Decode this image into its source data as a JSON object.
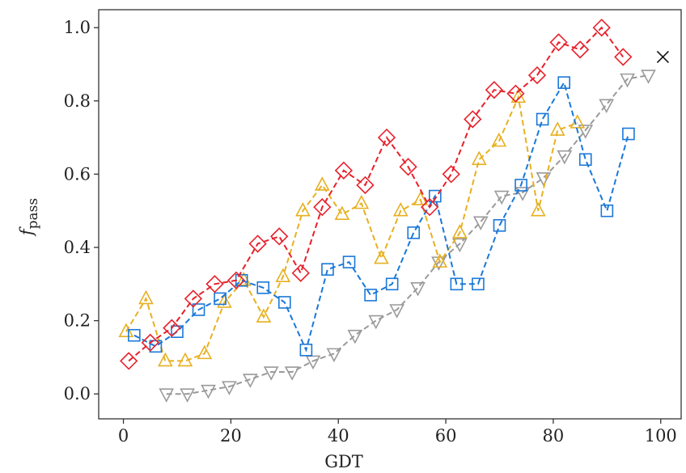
{
  "chart_data": {
    "type": "line",
    "xlabel": "GDT",
    "ylabel": {
      "symbol": "f",
      "subscript": "pass"
    },
    "xlim": [
      -4.6,
      103.8
    ],
    "ylim": [
      -0.068,
      1.049
    ],
    "xticks": [
      0,
      20,
      40,
      60,
      80,
      100
    ],
    "yticks": [
      {
        "value": 0,
        "label": "0.0"
      },
      {
        "value": 0.2,
        "label": "0.2"
      },
      {
        "value": 0.4,
        "label": "0.4"
      },
      {
        "value": 0.6,
        "label": "0.6"
      },
      {
        "value": 0.8,
        "label": "0.8"
      },
      {
        "value": 1,
        "label": "1.0"
      }
    ],
    "series": [
      {
        "color": "#9a9a9a",
        "marker": "triangle-down",
        "line": true,
        "x": [
          8,
          11.9,
          15.8,
          19.7,
          23.6,
          27.5,
          31.4,
          35.3,
          39.2,
          43.1,
          47,
          50.9,
          54.8,
          58.7,
          62.6,
          66.5,
          70.4,
          74.3,
          78.2,
          82.1,
          86,
          89.9,
          93.8,
          97.7
        ],
        "values": [
          0.0,
          0.0,
          0.01,
          0.02,
          0.04,
          0.06,
          0.06,
          0.09,
          0.11,
          0.16,
          0.2,
          0.23,
          0.29,
          0.36,
          0.41,
          0.47,
          0.54,
          0.55,
          0.59,
          0.65,
          0.72,
          0.79,
          0.86,
          0.87
        ]
      },
      {
        "color": "#e8b020",
        "marker": "triangle-up",
        "line": true,
        "x": [
          0.5,
          4.2,
          7.8,
          11.5,
          15.1,
          18.8,
          22.4,
          26.1,
          29.7,
          33.4,
          37,
          40.7,
          44.3,
          48,
          51.6,
          55.3,
          58.9,
          62.6,
          66.2,
          69.9,
          73.5,
          77.2,
          80.8,
          84.5
        ],
        "values": [
          0.17,
          0.26,
          0.09,
          0.09,
          0.11,
          0.25,
          0.31,
          0.21,
          0.32,
          0.5,
          0.57,
          0.49,
          0.52,
          0.37,
          0.5,
          0.53,
          0.36,
          0.44,
          0.64,
          0.69,
          0.81,
          0.5,
          0.72,
          0.74
        ]
      },
      {
        "color": "#1a78d8",
        "marker": "square",
        "line": true,
        "x": [
          2,
          6,
          10,
          14,
          18,
          22,
          26,
          30,
          34,
          38,
          42,
          46,
          50,
          54,
          58,
          62,
          66,
          70,
          74,
          78,
          82,
          86,
          90,
          94
        ],
        "values": [
          0.16,
          0.13,
          0.17,
          0.23,
          0.26,
          0.31,
          0.29,
          0.25,
          0.12,
          0.34,
          0.36,
          0.27,
          0.3,
          0.44,
          0.54,
          0.3,
          0.3,
          0.46,
          0.57,
          0.75,
          0.85,
          0.64,
          0.5,
          0.71
        ]
      },
      {
        "color": "#e8202a",
        "marker": "diamond",
        "line": true,
        "x": [
          1,
          5,
          9,
          13,
          17,
          21,
          25,
          29,
          33,
          37,
          41,
          45,
          49,
          53,
          57,
          61,
          65,
          69,
          73,
          77,
          81,
          85,
          89,
          93
        ],
        "values": [
          0.09,
          0.14,
          0.18,
          0.26,
          0.3,
          0.31,
          0.41,
          0.43,
          0.33,
          0.51,
          0.61,
          0.57,
          0.7,
          0.62,
          0.51,
          0.6,
          0.75,
          0.83,
          0.82,
          0.87,
          0.96,
          0.94,
          1.0,
          0.92
        ]
      },
      {
        "color": "#111111",
        "marker": "x",
        "line": false,
        "x": [
          100.4
        ],
        "values": [
          0.92
        ]
      }
    ]
  }
}
